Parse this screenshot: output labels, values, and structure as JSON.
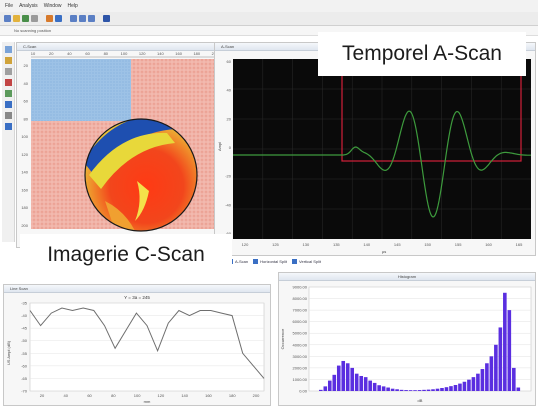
{
  "menu": [
    "File",
    "Analysis",
    "Window",
    "Help"
  ],
  "toolbar_icons": [
    "new-icon",
    "open-icon",
    "save-icon",
    "undo-icon",
    "zoom-icon",
    "grid-icon",
    "chart-icon",
    "filter-icon",
    "window-icon",
    "help-icon"
  ],
  "subbar": {
    "text": "No scanning position"
  },
  "cscan": {
    "title": "C-Scan",
    "x_ticks": [
      "10",
      "20",
      "40",
      "60",
      "80",
      "100",
      "120",
      "140",
      "160",
      "180",
      "200"
    ],
    "y_ticks": [
      "20",
      "40",
      "60",
      "80",
      "100",
      "120",
      "140",
      "160",
      "180",
      "200"
    ]
  },
  "ascan": {
    "title": "A-Scan",
    "ylabel": "Ampl",
    "xlabel": "µs",
    "y_ticks": [
      "60",
      "40",
      "20",
      "0",
      "-20",
      "-40",
      "-60"
    ],
    "x_ticks": [
      "120",
      "125",
      "130",
      "135",
      "140",
      "145",
      "150",
      "155",
      "160",
      "165"
    ]
  },
  "tabs": [
    "A-Scan",
    "Horizontal Split",
    "Vertical Split"
  ],
  "linescan": {
    "title": "Line Scan",
    "subtitle": "Y = 3a = 245",
    "ylabel": "US Ampl (dB)",
    "y_ticks": [
      "-35",
      "-40",
      "-45",
      "-50",
      "-55",
      "-60",
      "-65",
      "-70"
    ],
    "x_ticks": [
      "20",
      "40",
      "60",
      "80",
      "100",
      "120",
      "140",
      "160",
      "180",
      "200"
    ],
    "xlabel": "mm"
  },
  "histogram": {
    "title": "Histogram",
    "ylabel": "Occurrence",
    "xlabel": "dB",
    "y_ticks": [
      "9000.00",
      "8000.00",
      "7000.00",
      "6000.00",
      "5000.00",
      "4000.00",
      "3000.00",
      "2000.00",
      "1000.00",
      "0.00"
    ]
  },
  "labels": {
    "temporel": "Temporel A-Scan",
    "imagerie": "Imagerie C-Scan"
  },
  "colors": {
    "scope_bg": "#0a0a0a",
    "signal": "#3d9b3d",
    "gate": "#d2203a",
    "hist_bar": "#5a2ee0",
    "line": "#6e6e6e"
  },
  "chart_data": [
    {
      "type": "line",
      "title": "Line Scan",
      "subtitle": "Y = 3a = 245",
      "xlabel": "mm",
      "ylabel": "US Ampl (dB)",
      "ylim": [
        -70,
        -35
      ],
      "xlim": [
        0,
        220
      ],
      "series": [
        {
          "x": [
            0,
            10,
            20,
            30,
            40,
            50,
            60,
            70,
            80,
            90,
            100,
            110,
            120,
            130,
            140,
            150,
            160,
            170,
            180,
            190,
            200,
            210,
            220
          ],
          "values": [
            -38,
            -44,
            -39,
            -37,
            -38,
            -37,
            -38,
            -44,
            -53,
            -46,
            -39,
            -44,
            -54,
            -43,
            -38,
            -40,
            -38,
            -38,
            -39,
            -40,
            -55,
            -60,
            -65
          ]
        }
      ]
    },
    {
      "type": "bar",
      "title": "Histogram",
      "xlabel": "dB",
      "ylabel": "Occurrence",
      "ylim": [
        0,
        9000
      ],
      "values": [
        100,
        400,
        900,
        1400,
        2200,
        2600,
        2400,
        2000,
        1500,
        1300,
        1200,
        900,
        700,
        500,
        400,
        300,
        200,
        150,
        100,
        80,
        70,
        70,
        80,
        100,
        120,
        150,
        200,
        260,
        330,
        420,
        520,
        640,
        800,
        980,
        1200,
        1500,
        1900,
        2400,
        3000,
        4000,
        5500,
        8500,
        7000,
        2000,
        300
      ]
    }
  ]
}
